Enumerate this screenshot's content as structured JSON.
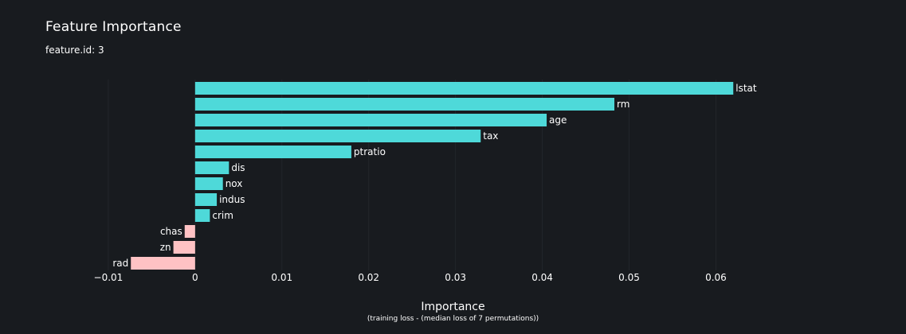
{
  "title": "Feature Importance",
  "subtitle": "feature.id: 3",
  "chart_data": {
    "type": "bar",
    "orientation": "horizontal",
    "categories": [
      "lstat",
      "rm",
      "age",
      "tax",
      "ptratio",
      "dis",
      "nox",
      "indus",
      "crim",
      "chas",
      "zn",
      "rad"
    ],
    "values": [
      0.062,
      0.0483,
      0.0405,
      0.0329,
      0.018,
      0.0039,
      0.0032,
      0.0025,
      0.0017,
      -0.0012,
      -0.0025,
      -0.0074
    ],
    "xlabel": "Importance",
    "xlabel_sub": "(training loss - (median loss of 7 permutations))",
    "xlim": [
      -0.0099,
      0.0662
    ],
    "xticks": [
      -0.01,
      0,
      0.01,
      0.02,
      0.03,
      0.04,
      0.05,
      0.06
    ],
    "xtick_labels": [
      "−0.01",
      "0",
      "0.01",
      "0.02",
      "0.03",
      "0.04",
      "0.05",
      "0.06"
    ],
    "positive_color": "#4ed9d9",
    "negative_color": "#ffc2c4",
    "grid": true
  }
}
